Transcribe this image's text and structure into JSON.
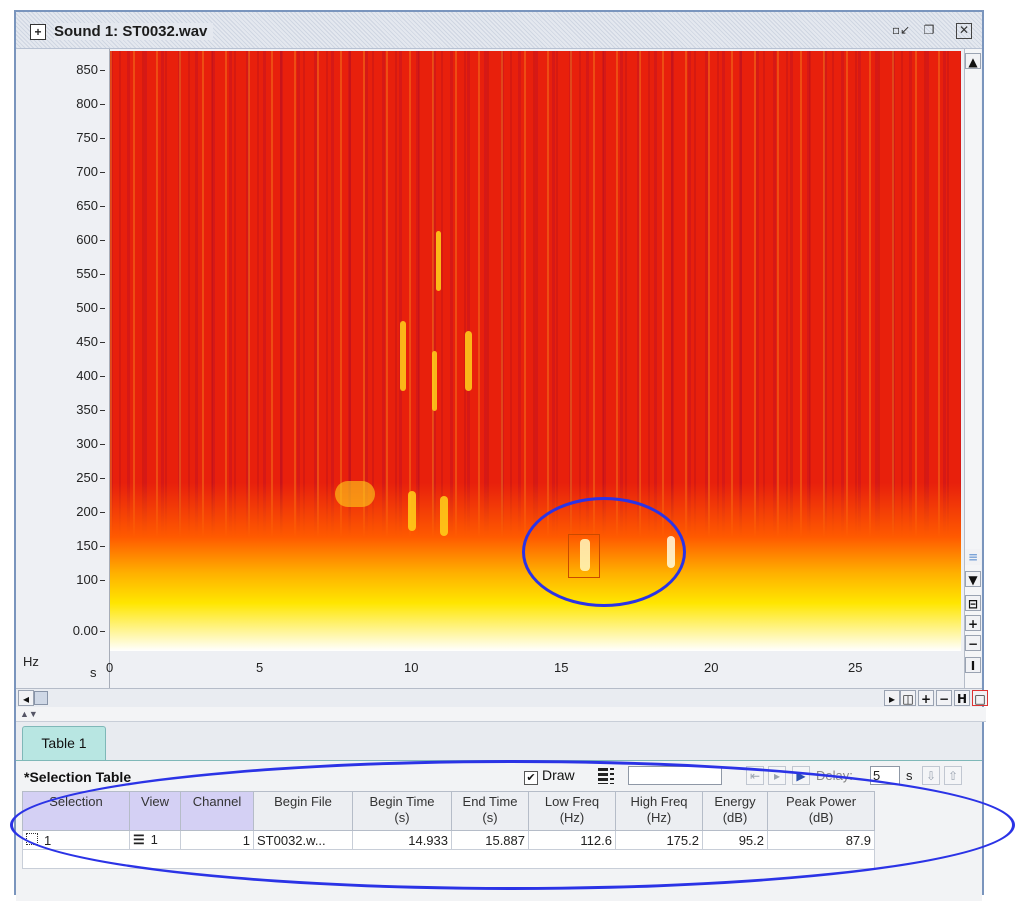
{
  "window": {
    "title": "Sound 1: ST0032.wav",
    "title_icon": "sound-file-icon",
    "buttons": [
      "minimize-icon",
      "restore-icon",
      "close-icon"
    ]
  },
  "spectrogram": {
    "y_unit": "Hz",
    "x_unit": "s",
    "y_ticks": [
      "850",
      "800",
      "750",
      "700",
      "650",
      "600",
      "550",
      "500",
      "450",
      "400",
      "350",
      "300",
      "250",
      "200",
      "150",
      "100",
      "0.00"
    ],
    "x_ticks": [
      "0",
      "5",
      "10",
      "15",
      "20",
      "25"
    ],
    "colors": {
      "low": "#ffffff",
      "mid": "#ffe600",
      "high": "#e8200c"
    }
  },
  "table_tab": {
    "label": "Table 1"
  },
  "selection_table": {
    "title": "*Selection Table",
    "draw_label": "Draw",
    "draw_checked": true,
    "delay_label": "Delay:",
    "delay_value": "5",
    "delay_unit": "s",
    "columns": [
      {
        "line1": "Selection",
        "line2": ""
      },
      {
        "line1": "View",
        "line2": ""
      },
      {
        "line1": "Channel",
        "line2": ""
      },
      {
        "line1": "Begin File",
        "line2": ""
      },
      {
        "line1": "Begin Time",
        "line2": "(s)"
      },
      {
        "line1": "End Time",
        "line2": "(s)"
      },
      {
        "line1": "Low Freq",
        "line2": "(Hz)"
      },
      {
        "line1": "High Freq",
        "line2": "(Hz)"
      },
      {
        "line1": "Energy",
        "line2": "(dB)"
      },
      {
        "line1": "Peak Power",
        "line2": "(dB)"
      }
    ],
    "rows": [
      {
        "selection": "1",
        "view": "1",
        "channel": "1",
        "begin_file": "ST0032.w...",
        "begin_time": "14.933",
        "end_time": "15.887",
        "low_freq": "112.6",
        "high_freq": "175.2",
        "energy": "95.2",
        "peak_power": "87.9"
      }
    ]
  },
  "overlay_color": "#2b33e6"
}
